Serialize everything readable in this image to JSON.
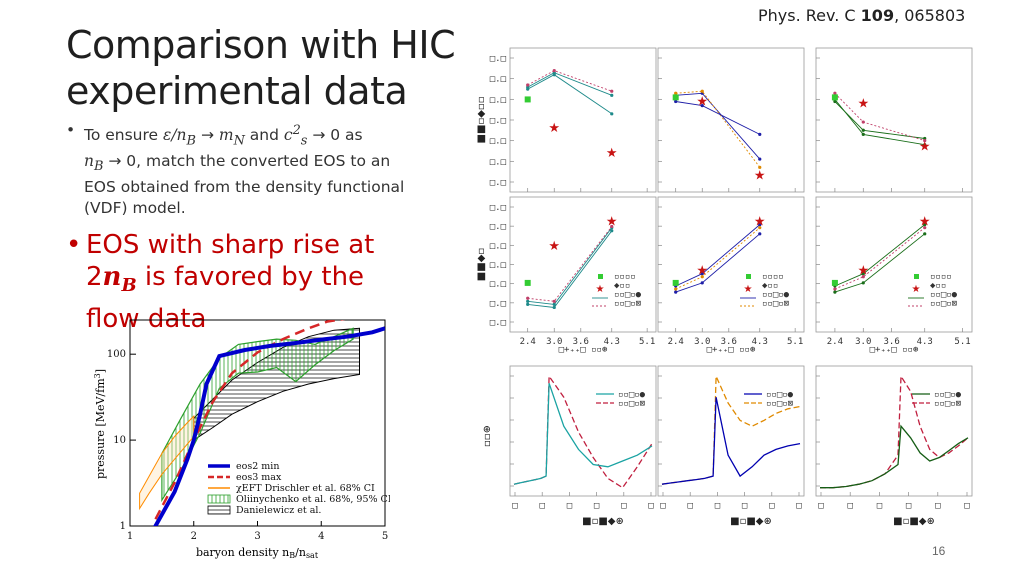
{
  "slide": {
    "title_line1": "Comparison with HIC",
    "title_line2": "experimental data",
    "citation_journal": "Phys. Rev. C ",
    "citation_volume": "109",
    "citation_rest": ", 065803",
    "page_number": "16"
  },
  "bullets": {
    "b1_dot": "•",
    "b1_t1": "To ensure ",
    "b1_m1": "ε/n",
    "b1_m1s": "B",
    "b1_arrow1": " → ",
    "b1_m2": "m",
    "b1_m2s": "N",
    "b1_t2": " and ",
    "b1_m3": "c",
    "b1_m3sup": "2",
    "b1_m3s": "s",
    "b1_arrow2": " → 0 as",
    "b1_m4": "n",
    "b1_m4s": "B",
    "b1_t3": " → 0, match the converted EOS to an EOS obtained from the density functional (VDF) model.",
    "b2_dot": "•",
    "b2_t1": "EOS with sharp rise at",
    "b2_t2": "2",
    "b2_m": "n",
    "b2_ms": "B",
    "b2_t3": " is favored by the",
    "b2_t4": "flow data"
  },
  "chart_data": [
    {
      "type": "line",
      "xlabel": "baryon density n",
      "xlabel_sub": "B",
      "xlabel_suffix": "/n",
      "xlabel_sub2": "sat",
      "ylabel": "pressure [MeV/fm",
      "ylabel_sup": "3",
      "ylabel_suffix": "]",
      "xlim": [
        1,
        5
      ],
      "ylim": [
        1,
        250
      ],
      "yscale": "log",
      "xticks": [
        "1",
        "2",
        "3",
        "4",
        "5"
      ],
      "yticks": [
        "1",
        "10",
        "100"
      ],
      "legend_position": "lower-right",
      "series": [
        {
          "name": "eos2 min",
          "color": "#0000cc",
          "style": "solid",
          "x": [
            1.0,
            1.4,
            1.7,
            1.9,
            2.0,
            2.1,
            2.2,
            2.4,
            2.8,
            3.2,
            3.6,
            4.0,
            4.4,
            4.8,
            5.0
          ],
          "y": [
            0.4,
            1.0,
            2.5,
            6,
            10,
            20,
            45,
            95,
            112,
            125,
            135,
            148,
            160,
            180,
            200
          ]
        },
        {
          "name": "eos3 max",
          "color": "#d62728",
          "style": "dashed",
          "x": [
            1.4,
            1.7,
            2.0,
            2.3,
            2.6,
            3.0,
            3.4,
            3.8,
            4.1,
            4.4
          ],
          "y": [
            1.2,
            3.2,
            10,
            28,
            60,
            105,
            150,
            200,
            240,
            260
          ]
        },
        {
          "name": "χEFT Drischler et al. 68% CI",
          "color": "#ff8c00",
          "style": "solid",
          "x": [
            1.15,
            1.3,
            1.5,
            1.7,
            1.9,
            2.0
          ],
          "lower": [
            1.6,
            2.4,
            4,
            6,
            9,
            11
          ],
          "upper": [
            2.4,
            3.8,
            7,
            11,
            16,
            19
          ]
        },
        {
          "name": "Oliinychenko et al. 68%, 95% CI",
          "color": "#2ca02c",
          "style": "hatched-band",
          "x": [
            1.5,
            1.8,
            2.1,
            2.4,
            2.7,
            3.0,
            3.3,
            3.6,
            3.9,
            4.2,
            4.5
          ],
          "lower": [
            2.0,
            4.5,
            12,
            40,
            60,
            62,
            70,
            48,
            75,
            110,
            150
          ],
          "upper": [
            7,
            18,
            45,
            90,
            130,
            140,
            150,
            145,
            130,
            160,
            200
          ]
        },
        {
          "name": "Danielewicz et al.",
          "color": "#000000",
          "style": "hatched-band",
          "x": [
            2.0,
            2.3,
            2.6,
            3.0,
            3.4,
            3.8,
            4.2,
            4.6
          ],
          "lower": [
            10,
            14,
            20,
            28,
            37,
            45,
            52,
            58
          ],
          "upper": [
            18,
            30,
            50,
            80,
            120,
            160,
            190,
            200
          ]
        }
      ]
    },
    {
      "type": "scatter",
      "xticks": [
        "2.4",
        "3.0",
        "3.6",
        "4.3",
        "5.1"
      ],
      "xlabel_glyphs": "√s_NN [GeV]",
      "panels": [
        {
          "row": "v1",
          "color": "#1e8a8a",
          "x": [
            2.4,
            3.0,
            4.3
          ],
          "data": [
            0.025,
            -0.045,
            -0.105
          ],
          "model_a": [
            0.055,
            0.09,
            0.035
          ],
          "model_b": [
            0.06,
            0.095,
            0.045
          ],
          "model_c": [
            0.05,
            0.085,
            -0.01
          ]
        },
        {
          "row": "v1",
          "color": "#1e1ea8",
          "x": [
            2.4,
            3.0,
            4.3
          ],
          "data": [
            0.03,
            0.02,
            -0.16
          ],
          "model_a": [
            0.035,
            0.04,
            -0.12
          ],
          "model_b": [
            0.04,
            0.045,
            -0.14
          ],
          "model_c": [
            0.02,
            0.01,
            -0.06
          ]
        },
        {
          "row": "v1",
          "color": "#1a6e1a",
          "x": [
            2.4,
            3.0,
            4.3
          ],
          "data": [
            0.03,
            0.015,
            -0.09
          ],
          "model_a": [
            0.02,
            -0.05,
            -0.07
          ],
          "model_b": [
            0.04,
            -0.03,
            -0.075
          ],
          "model_c": [
            0.025,
            -0.06,
            -0.085
          ]
        },
        {
          "row": "v2",
          "color": "#1e8a8a",
          "x": [
            2.4,
            3.0,
            4.3
          ],
          "data": [
            -0.04,
            0.02,
            0.06
          ],
          "model_a": [
            -0.07,
            -0.075,
            0.05
          ],
          "model_b": [
            -0.065,
            -0.07,
            0.052
          ],
          "model_c": [
            -0.075,
            -0.08,
            0.045
          ]
        },
        {
          "row": "v2",
          "color": "#1e1ea8",
          "x": [
            2.4,
            3.0,
            4.3
          ],
          "data": [
            -0.04,
            -0.02,
            0.06
          ],
          "model_a": [
            -0.045,
            -0.025,
            0.055
          ],
          "model_b": [
            -0.05,
            -0.03,
            0.05
          ],
          "model_c": [
            -0.055,
            -0.04,
            0.04
          ]
        },
        {
          "row": "v2",
          "color": "#1a6e1a",
          "x": [
            2.4,
            3.0,
            4.3
          ],
          "data": [
            -0.04,
            -0.02,
            0.06
          ],
          "model_a": [
            -0.045,
            -0.025,
            0.055
          ],
          "model_b": [
            -0.05,
            -0.03,
            0.05
          ],
          "model_c": [
            -0.055,
            -0.04,
            0.04
          ]
        }
      ]
    },
    {
      "type": "line",
      "panels": [
        {
          "color_solid": "#1aa3a3",
          "color_dashed": "#c01f3f",
          "peak_x": 0.22,
          "solid": [
            0.05,
            0.06,
            0.07,
            0.08,
            0.09,
            0.1,
            0.12,
            0.92,
            0.55,
            0.35,
            0.22,
            0.2,
            0.25,
            0.3,
            0.38
          ],
          "dashed": [
            0.05,
            0.06,
            0.07,
            0.08,
            0.09,
            0.1,
            0.12,
            0.98,
            0.8,
            0.5,
            0.28,
            0.1,
            0.02,
            0.2,
            0.4
          ]
        },
        {
          "color_solid": "#0000b0",
          "color_dashed": "#e08a00",
          "peak_x": 0.35,
          "solid": [
            0.05,
            0.06,
            0.07,
            0.08,
            0.09,
            0.1,
            0.12,
            0.8,
            0.3,
            0.12,
            0.2,
            0.3,
            0.35,
            0.38,
            0.4
          ],
          "dashed": [
            0.05,
            0.06,
            0.07,
            0.08,
            0.09,
            0.1,
            0.12,
            0.98,
            0.75,
            0.6,
            0.55,
            0.6,
            0.66,
            0.7,
            0.72
          ]
        },
        {
          "color_solid": "#155d15",
          "color_dashed": "#c01f3f",
          "peak_x": 0.5,
          "solid": [
            0.02,
            0.02,
            0.03,
            0.05,
            0.08,
            0.14,
            0.22,
            0.55,
            0.45,
            0.32,
            0.25,
            0.28,
            0.34,
            0.4,
            0.45
          ],
          "dashed": [
            0.02,
            0.02,
            0.03,
            0.05,
            0.08,
            0.14,
            0.3,
            0.98,
            0.85,
            0.55,
            0.35,
            0.28,
            0.32,
            0.38,
            0.45
          ]
        }
      ]
    }
  ]
}
